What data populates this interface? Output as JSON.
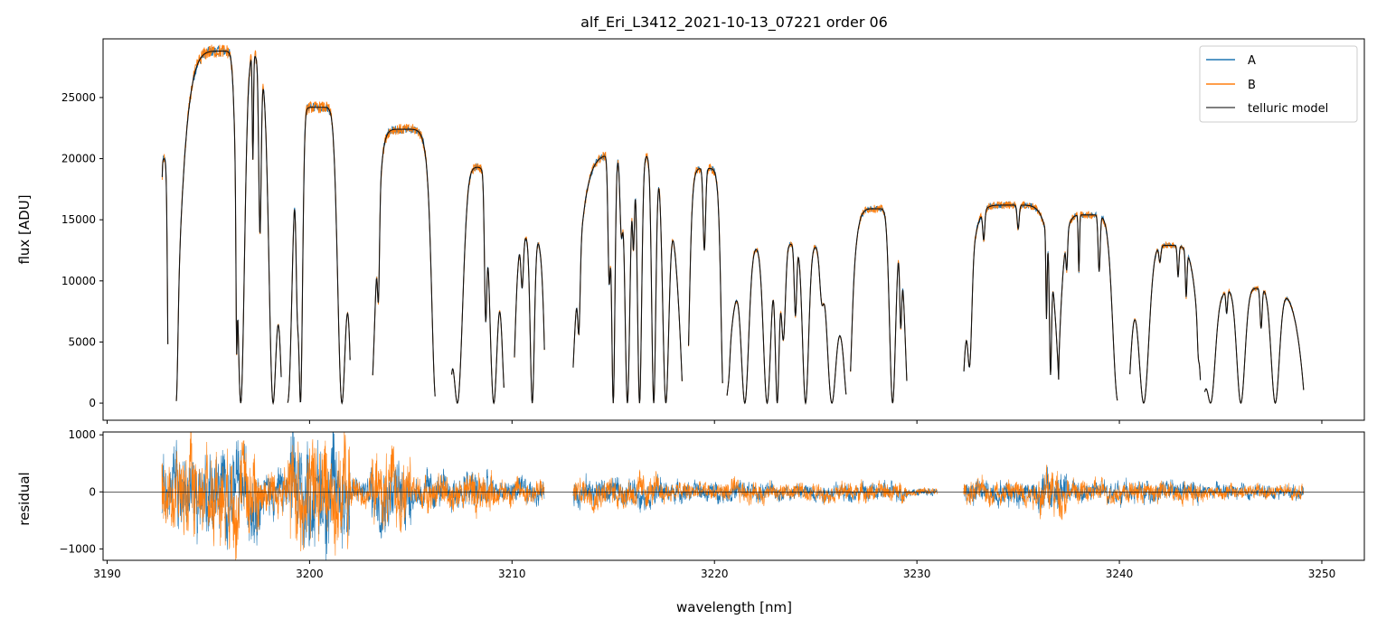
{
  "chart_data": [
    {
      "type": "line",
      "title": "alf_Eri_L3412_2021-10-13_07221  order 06",
      "ylabel": "flux [ADU]",
      "xlabel": "",
      "xlim": [
        3189.8,
        3252.1
      ],
      "ylim": [
        -1400,
        29800
      ],
      "yticks": [
        0,
        5000,
        10000,
        15000,
        20000,
        25000
      ],
      "ytick_labels": [
        "0",
        "5000",
        "10000",
        "15000",
        "20000",
        "25000"
      ],
      "xticks": [
        3190,
        3200,
        3210,
        3220,
        3230,
        3240,
        3250
      ],
      "legend": {
        "position": "top-right",
        "entries": [
          "A",
          "B",
          "telluric model"
        ]
      },
      "series": [
        {
          "name": "A",
          "color": "#1f77b4"
        },
        {
          "name": "B",
          "color": "#ff7f0e"
        },
        {
          "name": "telluric model",
          "color": "#555555"
        }
      ],
      "continuum_segments": [
        [
          3192.7,
          3193.0,
          20000
        ],
        [
          3193.4,
          3198.6,
          28800
        ],
        [
          3198.9,
          3202.0,
          24200
        ],
        [
          3203.1,
          3206.2,
          22400
        ],
        [
          3207.0,
          3209.6,
          19300
        ],
        [
          3210.1,
          3211.6,
          13600
        ],
        [
          3213.0,
          3218.4,
          20300
        ],
        [
          3218.7,
          3220.4,
          19200
        ],
        [
          3220.6,
          3226.5,
          13000
        ],
        [
          3226.7,
          3229.5,
          15900
        ],
        [
          3232.3,
          3237.0,
          16200
        ],
        [
          3237.0,
          3239.9,
          15400
        ],
        [
          3240.5,
          3244.0,
          12900
        ],
        [
          3244.2,
          3249.1,
          9400
        ]
      ],
      "absorption_lines": [
        [
          3193.05,
          0.06,
          1.0
        ],
        [
          3193.25,
          0.04,
          0.35
        ],
        [
          3193.4,
          0.07,
          1.0
        ],
        [
          3196.4,
          0.03,
          0.7
        ],
        [
          3196.6,
          0.18,
          1.0
        ],
        [
          3197.2,
          0.03,
          0.3
        ],
        [
          3197.55,
          0.06,
          0.5
        ],
        [
          3198.2,
          0.18,
          1.0
        ],
        [
          3198.9,
          0.18,
          1.0
        ],
        [
          3199.4,
          0.07,
          0.55
        ],
        [
          3199.55,
          0.1,
          1.0
        ],
        [
          3201.6,
          0.2,
          1.0
        ],
        [
          3202.8,
          0.3,
          1.0
        ],
        [
          3203.4,
          0.05,
          0.45
        ],
        [
          3206.3,
          0.18,
          1.0
        ],
        [
          3206.8,
          0.1,
          0.6
        ],
        [
          3207.3,
          0.25,
          1.0
        ],
        [
          3208.7,
          0.06,
          0.6
        ],
        [
          3209.1,
          0.2,
          1.0
        ],
        [
          3209.8,
          0.22,
          1.0
        ],
        [
          3210.5,
          0.06,
          0.3
        ],
        [
          3211.0,
          0.1,
          1.0
        ],
        [
          3213.3,
          0.06,
          0.5
        ],
        [
          3214.8,
          0.06,
          0.5
        ],
        [
          3215.0,
          0.08,
          1.0
        ],
        [
          3215.4,
          0.07,
          0.3
        ],
        [
          3215.7,
          0.12,
          1.0
        ],
        [
          3216.0,
          0.05,
          0.35
        ],
        [
          3216.3,
          0.1,
          1.0
        ],
        [
          3217.0,
          0.1,
          1.0
        ],
        [
          3217.6,
          0.15,
          1.0
        ],
        [
          3218.6,
          0.12,
          0.6
        ],
        [
          3219.5,
          0.06,
          0.35
        ],
        [
          3220.5,
          0.12,
          1.0
        ],
        [
          3220.7,
          0.05,
          0.3
        ],
        [
          3221.5,
          0.18,
          1.0
        ],
        [
          3222.6,
          0.18,
          1.0
        ],
        [
          3223.1,
          0.1,
          1.0
        ],
        [
          3223.4,
          0.1,
          0.6
        ],
        [
          3224.0,
          0.06,
          0.45
        ],
        [
          3224.5,
          0.15,
          1.0
        ],
        [
          3225.3,
          0.1,
          0.3
        ],
        [
          3225.8,
          0.22,
          1.0
        ],
        [
          3226.6,
          0.12,
          0.6
        ],
        [
          3228.8,
          0.15,
          1.0
        ],
        [
          3229.2,
          0.05,
          0.5
        ],
        [
          3229.8,
          0.22,
          1.0
        ],
        [
          3230.3,
          0.15,
          0.95
        ],
        [
          3232.6,
          0.1,
          0.7
        ],
        [
          3233.3,
          0.05,
          0.15
        ],
        [
          3235.0,
          0.05,
          0.12
        ],
        [
          3236.4,
          0.03,
          0.5
        ],
        [
          3236.6,
          0.05,
          0.8
        ],
        [
          3237.4,
          0.04,
          0.2
        ],
        [
          3238.0,
          0.03,
          0.3
        ],
        [
          3239.0,
          0.05,
          0.3
        ],
        [
          3240.0,
          0.25,
          1.0
        ],
        [
          3241.2,
          0.25,
          1.0
        ],
        [
          3242.0,
          0.05,
          0.1
        ],
        [
          3242.9,
          0.04,
          0.2
        ],
        [
          3243.3,
          0.04,
          0.3
        ],
        [
          3243.9,
          0.04,
          0.3
        ],
        [
          3244.5,
          0.2,
          1.0
        ],
        [
          3245.3,
          0.04,
          0.2
        ],
        [
          3246.0,
          0.2,
          1.0
        ],
        [
          3247.0,
          0.05,
          0.35
        ],
        [
          3247.7,
          0.2,
          1.0
        ]
      ]
    },
    {
      "type": "line",
      "title": "",
      "ylabel": "residual",
      "xlabel": "wavelength [nm]",
      "xlim": [
        3189.8,
        3252.1
      ],
      "ylim": [
        -1200,
        1050
      ],
      "yticks": [
        -1000,
        0,
        1000
      ],
      "ytick_labels": [
        "−1000",
        "0",
        "1000"
      ],
      "xticks": [
        3190,
        3200,
        3210,
        3220,
        3230,
        3240,
        3250
      ],
      "xtick_labels": [
        "3190",
        "3200",
        "3210",
        "3220",
        "3230",
        "3240",
        "3250"
      ],
      "series": [
        {
          "name": "A",
          "color": "#1f77b4"
        },
        {
          "name": "B",
          "color": "#ff7f0e"
        }
      ],
      "zero_line": true,
      "residual_segments": [
        [
          3192.7,
          3193.2,
          600
        ],
        [
          3193.2,
          3197.5,
          900
        ],
        [
          3197.5,
          3199.0,
          500
        ],
        [
          3199.0,
          3202.0,
          1100
        ],
        [
          3202.0,
          3203.0,
          300
        ],
        [
          3203.0,
          3205.0,
          700
        ],
        [
          3205.0,
          3207.5,
          350
        ],
        [
          3207.5,
          3209.0,
          450
        ],
        [
          3209.0,
          3211.6,
          250
        ],
        [
          3213.0,
          3217.5,
          300
        ],
        [
          3217.5,
          3220.5,
          200
        ],
        [
          3220.5,
          3222.5,
          220
        ],
        [
          3222.5,
          3229.5,
          180
        ],
        [
          3229.5,
          3231.0,
          80
        ],
        [
          3232.3,
          3236.0,
          260
        ],
        [
          3236.0,
          3237.5,
          450
        ],
        [
          3237.5,
          3244.0,
          220
        ],
        [
          3244.0,
          3249.1,
          150
        ]
      ]
    }
  ]
}
